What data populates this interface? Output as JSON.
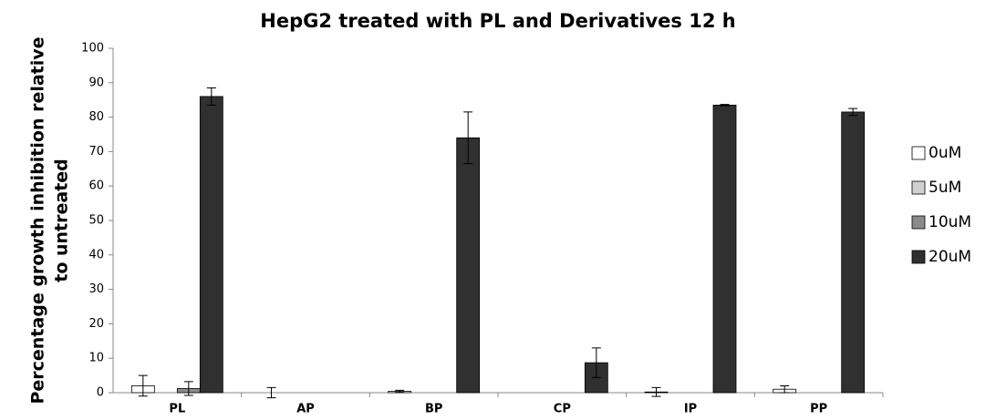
{
  "chart_data": {
    "type": "bar",
    "title": "HepG2 treated with PL and Derivatives 12 h",
    "y_label": [
      "Percentage growth inhibition relative",
      "to untreated"
    ],
    "categories": [
      "PL",
      "AP",
      "BP",
      "CP",
      "IP",
      "PP"
    ],
    "series": [
      {
        "name": "0uM",
        "color": "#ffffff",
        "values": [
          2,
          0,
          0.4,
          0,
          0.2,
          1
        ],
        "errors": [
          3,
          1.5,
          0.3,
          0,
          1.3,
          1
        ]
      },
      {
        "name": "5uM",
        "color": "#d0d0d0",
        "values": [
          0,
          0,
          0,
          0,
          0,
          0
        ],
        "errors": [
          0,
          0,
          0,
          0,
          0,
          0
        ]
      },
      {
        "name": "10uM",
        "color": "#8a8a8a",
        "values": [
          1.2,
          0,
          0,
          0,
          0,
          0
        ],
        "errors": [
          2,
          0,
          0,
          0,
          0,
          0
        ]
      },
      {
        "name": "20uM",
        "color": "#303030",
        "values": [
          86,
          0,
          74,
          8.7,
          83.5,
          81.5
        ],
        "errors": [
          2.5,
          0,
          7.5,
          4.3,
          0.2,
          1
        ]
      }
    ],
    "ylim": [
      0,
      100
    ],
    "yticks": [
      0,
      10,
      20,
      30,
      40,
      50,
      60,
      70,
      80,
      90,
      100
    ],
    "legend": "right"
  }
}
